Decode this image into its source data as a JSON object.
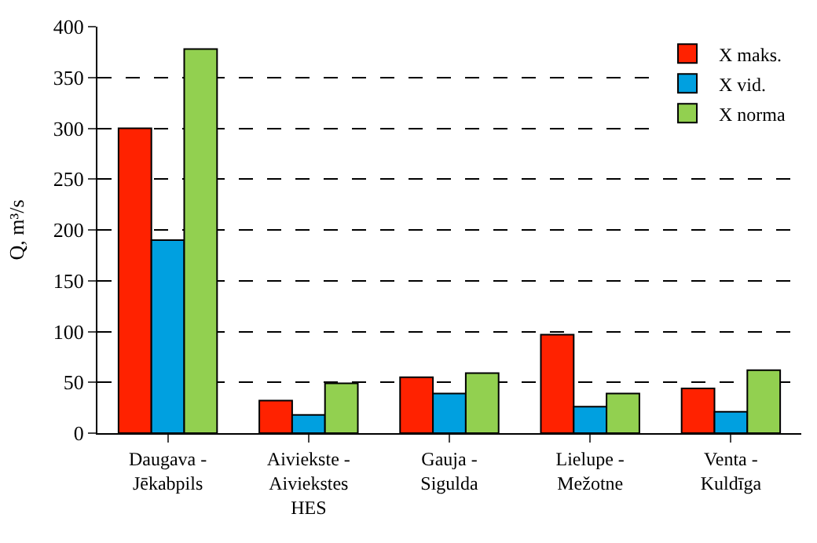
{
  "chart_data": {
    "type": "bar",
    "ylabel": "Q, m³/s",
    "categories": [
      "Daugava -\nJēkabpils",
      "Aiviekste -\nAiviekstes\nHES",
      "Gauja -\nSigulda",
      "Lielupe -\nMežotne",
      "Venta -\nKuldīga"
    ],
    "series": [
      {
        "name": "X maks.",
        "color": "#ff2200",
        "values": [
          300,
          32,
          55,
          97,
          44
        ]
      },
      {
        "name": "X vid.",
        "color": "#00a0e0",
        "values": [
          190,
          18,
          39,
          26,
          21
        ]
      },
      {
        "name": "X norma",
        "color": "#92d050",
        "values": [
          378,
          49,
          59,
          39,
          62
        ]
      }
    ],
    "ylim": [
      0,
      400
    ],
    "yticks": [
      0,
      50,
      100,
      150,
      200,
      250,
      300,
      350,
      400
    ],
    "grid": "y",
    "legend": "top right"
  }
}
